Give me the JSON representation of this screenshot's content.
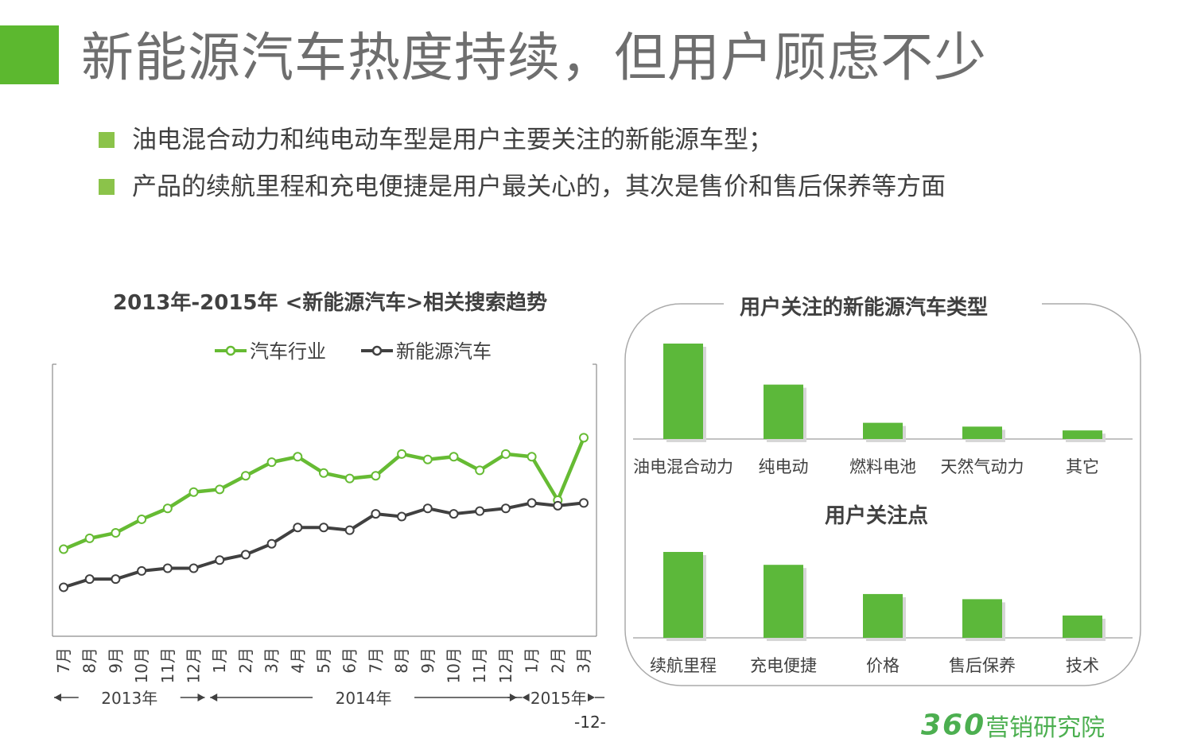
{
  "header": {
    "title": "新能源汽车热度持续，但用户顾虑不少",
    "bullets": [
      "油电混合动力和纯电动车型是用户主要关注的新能源车型；",
      "产品的续航里程和充电便捷是用户最关心的，其次是售价和售后保养等方面"
    ]
  },
  "colors": {
    "accent": "#5cb82f",
    "series_green": "#66bb33",
    "series_dark": "#404040",
    "bar": "#5cb83a"
  },
  "chart_data": [
    {
      "type": "line",
      "title": "2013年-2015年 <新能源汽车>相关搜索趋势",
      "categories": [
        "7月",
        "8月",
        "9月",
        "10月",
        "11月",
        "12月",
        "1月",
        "2月",
        "3月",
        "4月",
        "5月",
        "6月",
        "7月",
        "8月",
        "9月",
        "10月",
        "11月",
        "12月",
        "1月",
        "2月",
        "3月"
      ],
      "year_groups": [
        {
          "label": "2013年",
          "months": 6
        },
        {
          "label": "2014年",
          "months": 12
        },
        {
          "label": "2015年",
          "months": 3
        }
      ],
      "series": [
        {
          "name": "汽车行业",
          "values": [
            32,
            36,
            38,
            43,
            47,
            53,
            54,
            59,
            64,
            66,
            60,
            58,
            59,
            67,
            65,
            66,
            61,
            67,
            66,
            50,
            73
          ]
        },
        {
          "name": "新能源汽车",
          "values": [
            18,
            21,
            21,
            24,
            25,
            25,
            28,
            30,
            34,
            40,
            40,
            39,
            45,
            44,
            47,
            45,
            46,
            47,
            49,
            48,
            49
          ]
        }
      ],
      "ylim": [
        0,
        100
      ],
      "yaxis_labels_shown": false,
      "legend": "top"
    },
    {
      "type": "bar",
      "title": "用户关注的新能源汽车类型",
      "categories": [
        "油电混合动力",
        "纯电动",
        "燃料电池",
        "天然气动力",
        "其它"
      ],
      "values": [
        100,
        57,
        17,
        13,
        9
      ]
    },
    {
      "type": "bar",
      "title": "用户关注点",
      "categories": [
        "续航里程",
        "充电便捷",
        "价格",
        "售后保养",
        "技术"
      ],
      "values": [
        100,
        85,
        51,
        45,
        26
      ]
    }
  ],
  "footer": {
    "page_number": "-12-",
    "logo_number": "360",
    "logo_text": "营销研究院"
  }
}
